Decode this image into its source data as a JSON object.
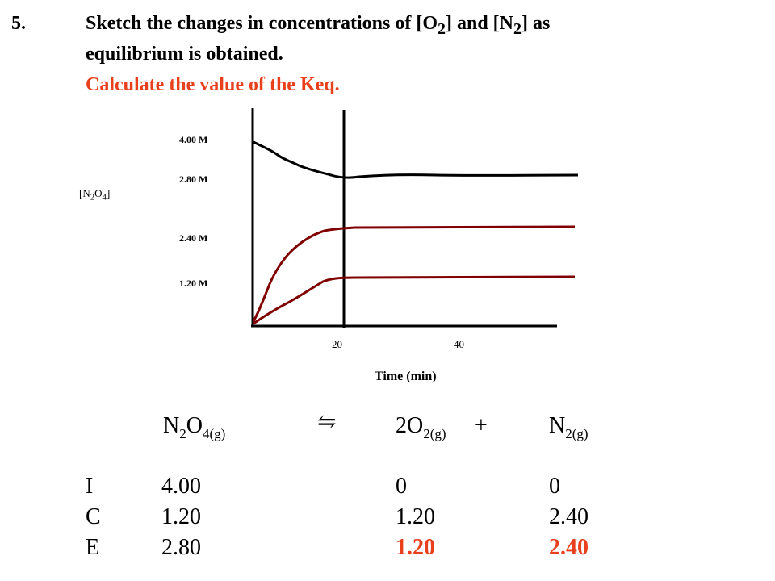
{
  "question": {
    "number": "5.",
    "line1": [
      "Sketch the changes in concentrations of [O",
      "2",
      "] and [N",
      "2",
      "] as"
    ],
    "line2": "equilibrium is obtained.",
    "line3": "Calculate the value of the Keq."
  },
  "graph": {
    "y_axis_label": [
      "[N",
      "2",
      "O",
      "4",
      "]"
    ],
    "y_ticks": [
      "4.00 M",
      "2.80 M",
      "2.40 M",
      "1.20 M"
    ],
    "x_ticks": [
      "20",
      "40"
    ],
    "x_title": "Time (min)"
  },
  "equation": {
    "reactant": [
      "N",
      "2",
      "O",
      "4(g)"
    ],
    "arrow": "⇋",
    "product1": [
      "2O",
      "2(g)"
    ],
    "plus": "+",
    "product2": [
      "N",
      "2(g)"
    ]
  },
  "ice_table": {
    "rows": [
      {
        "label": "I",
        "c1": "4.00",
        "c2": "0",
        "c3": "0"
      },
      {
        "label": "C",
        "c1": "1.20",
        "c2": "1.20",
        "c3": "2.40"
      },
      {
        "label": "E",
        "c1": "2.80",
        "c2": "1.20",
        "c3": "2.40"
      }
    ]
  },
  "colors": {
    "heading_red": "#e8401c",
    "curve_black": "#000000",
    "curve_dark_red": "#800000"
  }
}
